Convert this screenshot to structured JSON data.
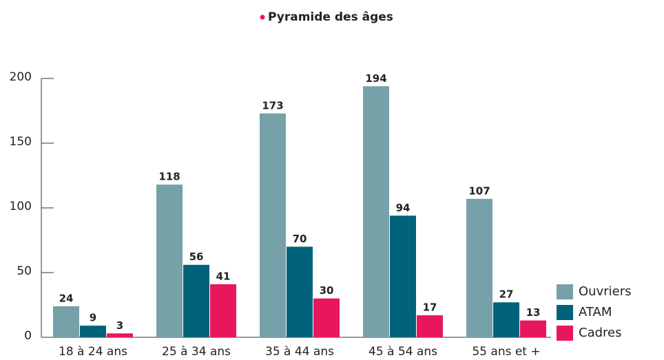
{
  "chart_data": {
    "type": "bar",
    "title": "Pyramide des âges",
    "categories": [
      "18 à 24 ans",
      "25 à 34 ans",
      "35 à 44 ans",
      "45 à 54 ans",
      "55 ans et +"
    ],
    "series": [
      {
        "name": "Ouvriers",
        "color": "#76a1a8",
        "values": [
          24,
          118,
          173,
          194,
          107
        ]
      },
      {
        "name": "ATAM",
        "color": "#00637a",
        "values": [
          9,
          56,
          70,
          94,
          27
        ]
      },
      {
        "name": "Cadres",
        "color": "#e8175d",
        "values": [
          3,
          41,
          30,
          17,
          13
        ]
      }
    ],
    "ylim": [
      0,
      200
    ],
    "yticks": [
      0,
      50,
      100,
      150,
      200
    ],
    "legend": "lower right"
  }
}
